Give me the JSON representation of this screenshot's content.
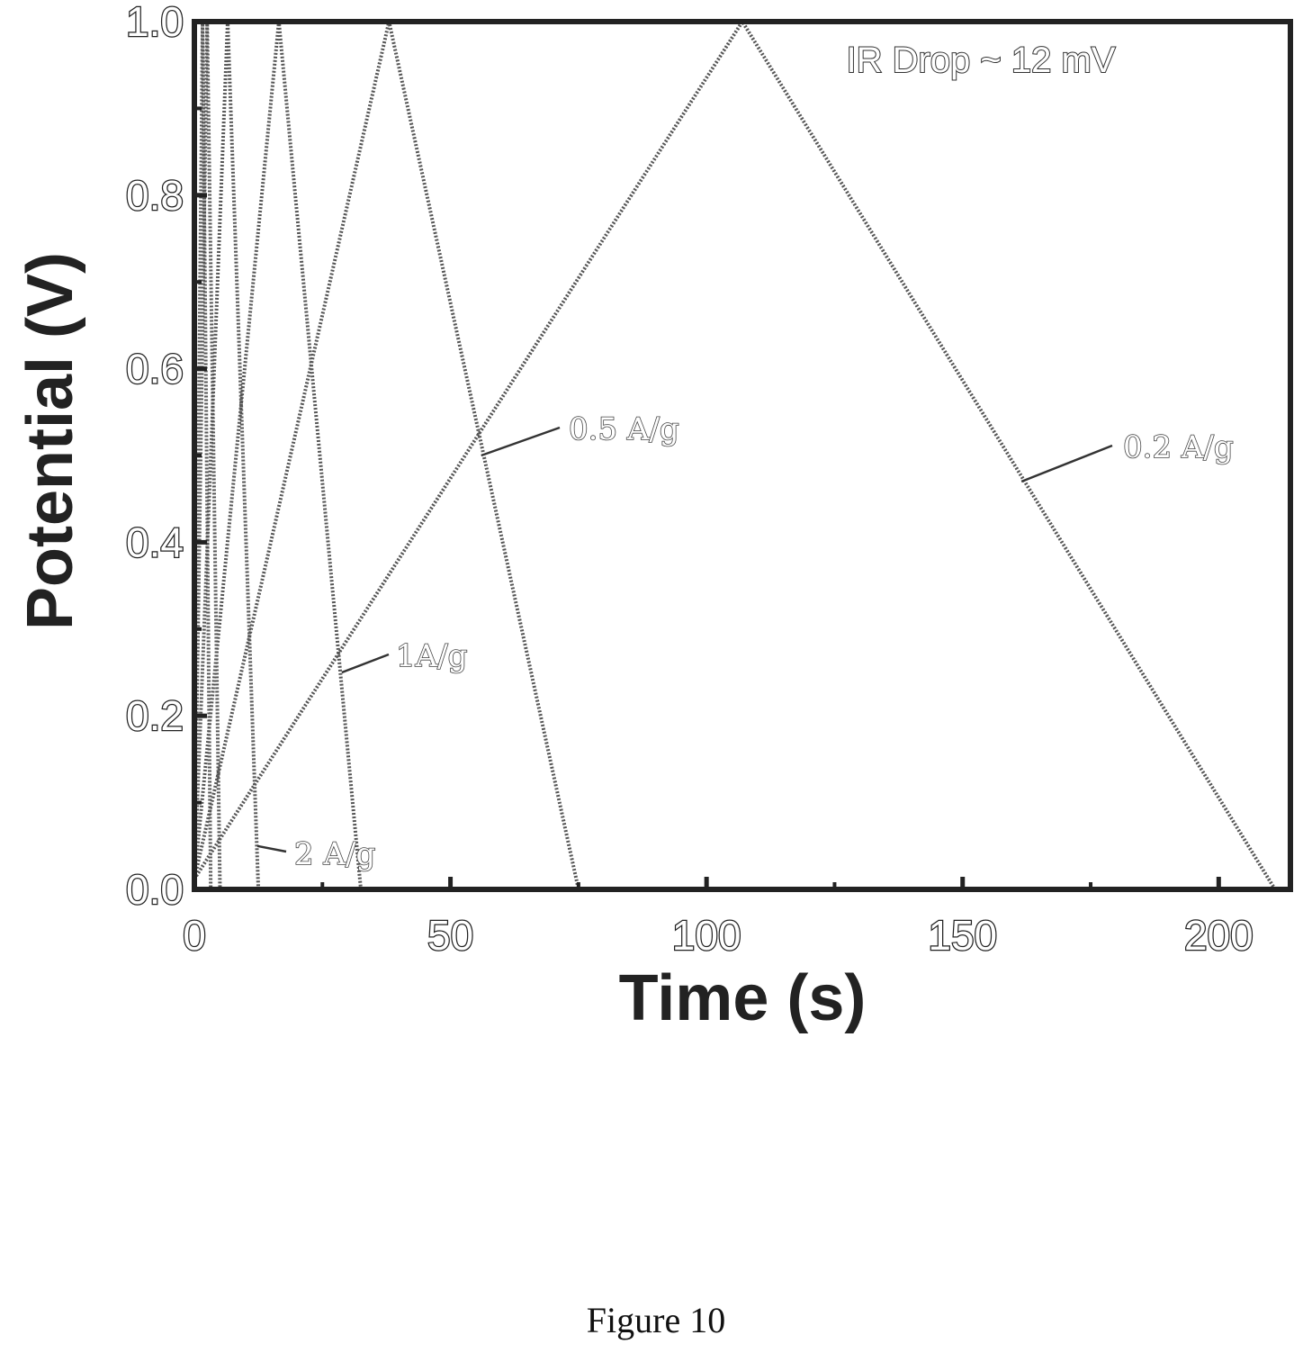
{
  "figure": {
    "caption": "Figure 10"
  },
  "chart_data": {
    "type": "line",
    "xlabel": "Time (s)",
    "ylabel": "Potential (V)",
    "xlim": [
      0,
      214
    ],
    "ylim": [
      0,
      1.0
    ],
    "x_ticks": [
      0,
      50,
      100,
      150,
      200
    ],
    "y_ticks": [
      0.0,
      0.2,
      0.4,
      0.6,
      0.8,
      1.0
    ],
    "x_tick_labels": [
      "0",
      "50",
      "100",
      "150",
      "200"
    ],
    "y_tick_labels": [
      "0.0",
      "0.2",
      "0.4",
      "0.6",
      "0.8",
      "1.0"
    ],
    "grid": false,
    "legend": "none",
    "annotation": "IR Drop ~ 12 mV",
    "series": [
      {
        "label": "2 A/g",
        "x": [
          0,
          6.5,
          12.5
        ],
        "y": [
          0.012,
          1.0,
          0.0
        ]
      },
      {
        "label": "1A/g",
        "x": [
          0,
          16.5,
          32.5
        ],
        "y": [
          0.012,
          1.0,
          0.0
        ]
      },
      {
        "label": "0.5 A/g",
        "x": [
          0,
          38,
          75
        ],
        "y": [
          0.012,
          1.0,
          0.0
        ]
      },
      {
        "label": "0.2 A/g",
        "x": [
          0,
          107,
          211
        ],
        "y": [
          0.012,
          1.0,
          0.0
        ]
      },
      {
        "label": "",
        "x": [
          0,
          2.5,
          5
        ],
        "y": [
          0.012,
          1.0,
          0.0
        ]
      },
      {
        "label": "",
        "x": [
          0,
          1.6,
          3.2
        ],
        "y": [
          0.012,
          1.0,
          0.0
        ]
      }
    ]
  }
}
